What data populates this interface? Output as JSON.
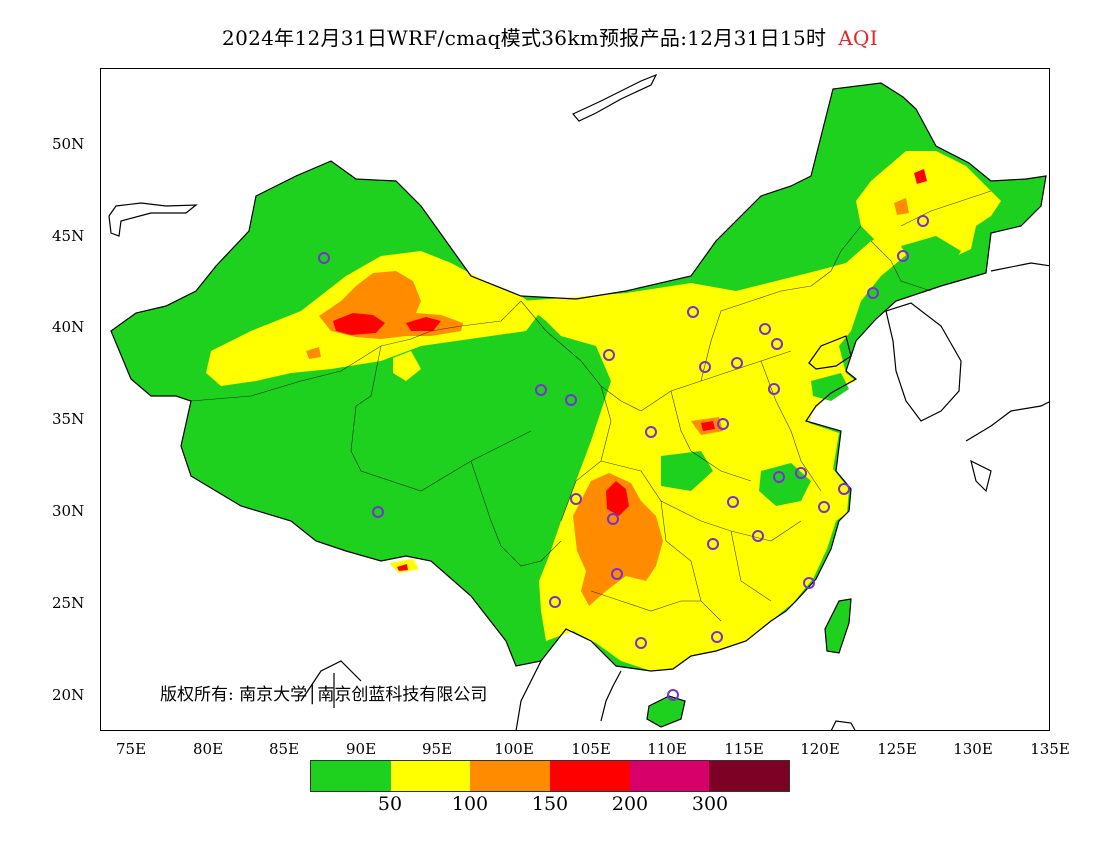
{
  "title": {
    "text": "2024年12月31日WRF/cmaq模式36km预报产品:12月31日15时",
    "variable": "AQI"
  },
  "map": {
    "lat_ticks": [
      "50N",
      "45N",
      "40N",
      "35N",
      "30N",
      "25N",
      "20N"
    ],
    "lon_ticks": [
      "75E",
      "80E",
      "85E",
      "90E",
      "95E",
      "100E",
      "105E",
      "110E",
      "115E",
      "120E",
      "125E",
      "130E",
      "135E"
    ],
    "lon_range": [
      73,
      135
    ],
    "lat_range": [
      18,
      54
    ],
    "copyright": "版权所有: 南京大学│南京创蓝科技有限公司"
  },
  "legend": {
    "colors": [
      "#1fd11f",
      "#ffff00",
      "#ff8c00",
      "#ff0000",
      "#d7006b",
      "#7d0025"
    ],
    "labels": [
      "50",
      "100",
      "150",
      "200",
      "300"
    ]
  },
  "palette": {
    "good": "#1fd11f",
    "moderate": "#ffff00",
    "usg": "#ff8c00",
    "unhealthy": "#ff0000",
    "station": "#7b2fd0"
  }
}
